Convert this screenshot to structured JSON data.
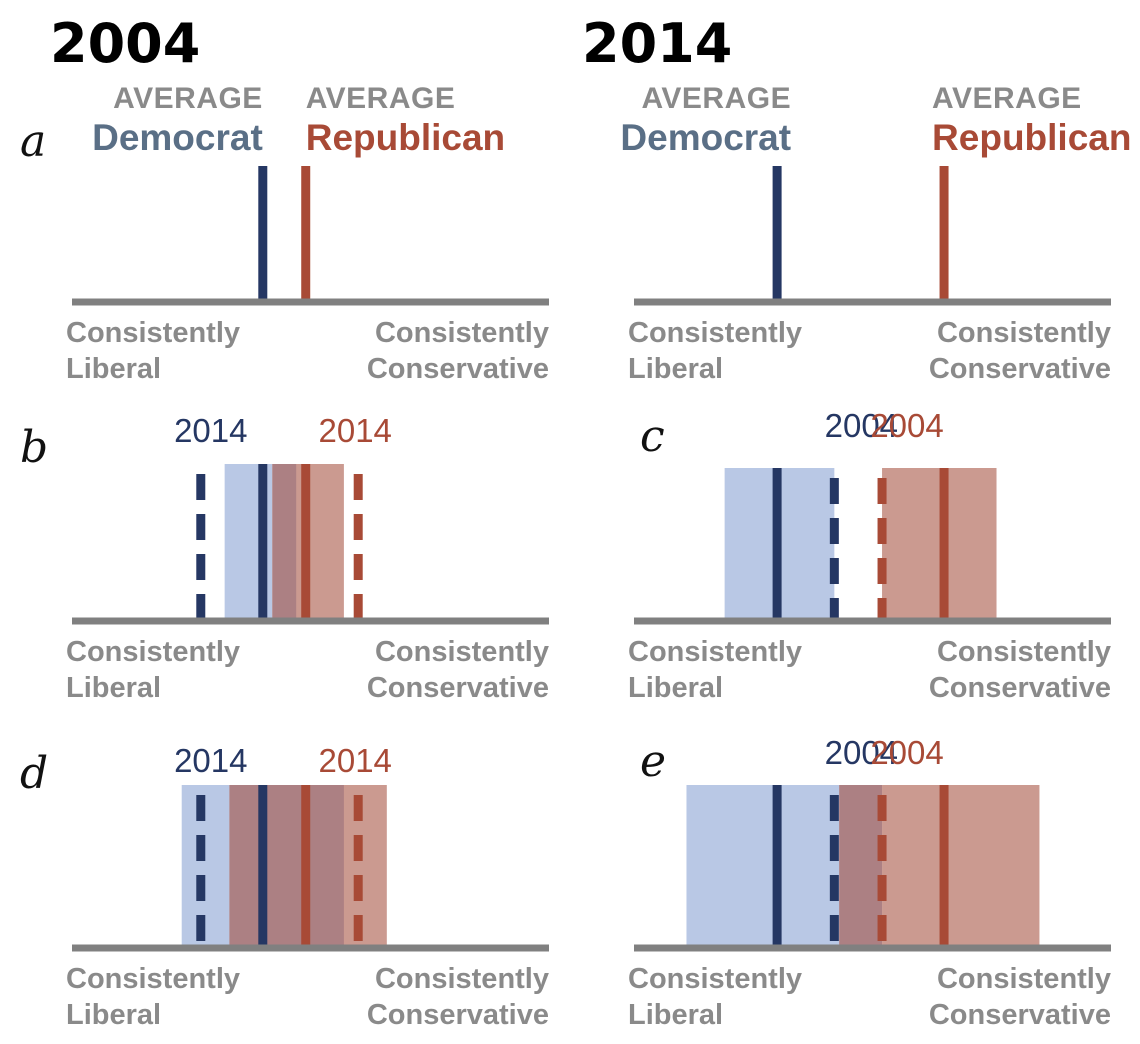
{
  "colors": {
    "democrat": "#253763",
    "republican": "#a84a36",
    "democrat_label": "#5a6f86",
    "democrat_range": "#b9c8e5",
    "republican_range": "#cb9a90",
    "overlap": "#ac8083",
    "axis": "#808080",
    "label_gray": "#8a8a8a"
  },
  "columns": [
    {
      "id": "left",
      "year": "2004"
    },
    {
      "id": "right",
      "year": "2014"
    }
  ],
  "average_label": "AVERAGE",
  "democrat_label": "Democrat",
  "republican_label": "Republican",
  "axis_labels": {
    "left_line1": "Consistently",
    "left_line2": "Liberal",
    "right_line1": "Consistently",
    "right_line2": "Conservative"
  },
  "panels": [
    {
      "id": "a",
      "letter": "a",
      "column": "left",
      "dem_line": 0.4,
      "rep_line": 0.49,
      "has_avg_labels": true
    },
    {
      "id": "a2",
      "letter": "",
      "column": "right",
      "dem_line": 0.3,
      "rep_line": 0.65,
      "has_avg_labels": true
    },
    {
      "id": "b",
      "letter": "b",
      "column": "left",
      "dem_range": [
        0.32,
        0.42
      ],
      "rep_range": [
        0.42,
        0.57
      ],
      "overlap": [
        0.42,
        0.47
      ],
      "dem_line": 0.4,
      "rep_line": 0.49,
      "dem_dashed": 0.27,
      "rep_dashed": 0.6,
      "dem_tag": "2014",
      "rep_tag": "2014"
    },
    {
      "id": "c",
      "letter": "c",
      "column": "right",
      "dem_range": [
        0.19,
        0.42
      ],
      "rep_range": [
        0.52,
        0.76
      ],
      "dem_line": 0.3,
      "rep_line": 0.65,
      "dem_dashed": 0.42,
      "rep_dashed": 0.52,
      "dem_tag": "2004",
      "rep_tag": "2004"
    },
    {
      "id": "d",
      "letter": "d",
      "column": "left",
      "dem_range": [
        0.23,
        0.33
      ],
      "rep_range": [
        0.33,
        0.66
      ],
      "overlap": [
        0.33,
        0.57
      ],
      "dem_line": 0.4,
      "rep_line": 0.49,
      "dem_dashed": 0.27,
      "rep_dashed": 0.6,
      "dem_tag": "2014",
      "rep_tag": "2014"
    },
    {
      "id": "e",
      "letter": "e",
      "column": "right",
      "dem_range": [
        0.11,
        0.43
      ],
      "rep_range": [
        0.52,
        0.85
      ],
      "overlap": [
        0.43,
        0.52
      ],
      "dem_line": 0.3,
      "rep_line": 0.65,
      "dem_dashed": 0.42,
      "rep_dashed": 0.52,
      "dem_tag": "2004",
      "rep_tag": "2004"
    }
  ]
}
